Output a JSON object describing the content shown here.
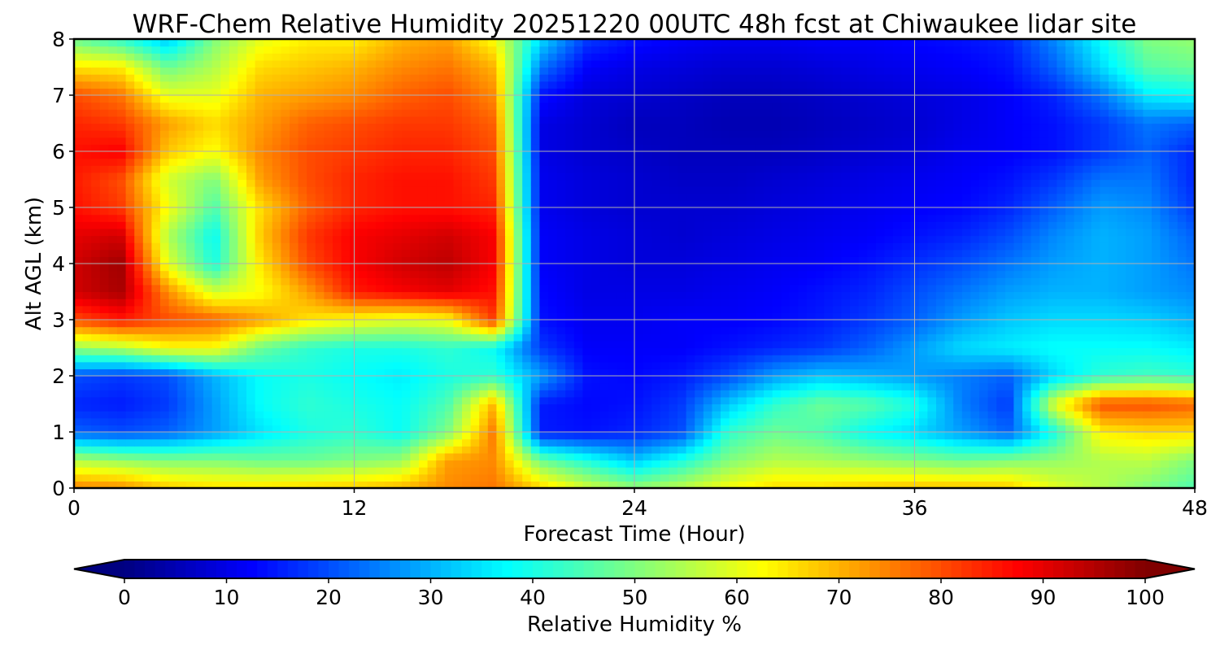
{
  "chart_data": {
    "type": "heatmap",
    "title": "WRF-Chem Relative Humidity 20251220 00UTC 48h fcst at Chiwaukee lidar site",
    "xlabel": "Forecast Time (Hour)",
    "ylabel": "Alt AGL (km)",
    "xlim": [
      0,
      48
    ],
    "ylim": [
      0,
      8
    ],
    "xticks": [
      0,
      12,
      24,
      36,
      48
    ],
    "yticks": [
      0,
      1,
      2,
      3,
      4,
      5,
      6,
      7,
      8
    ],
    "grid": true,
    "colormap": "jet",
    "colorbar": {
      "label": "Relative Humidity %",
      "min": 0,
      "max": 100,
      "ticks": [
        0,
        10,
        20,
        30,
        40,
        50,
        60,
        70,
        80,
        90,
        100
      ],
      "extend": "both",
      "orientation": "horizontal"
    },
    "x": [
      0,
      2,
      4,
      6,
      8,
      10,
      12,
      14,
      16,
      18,
      20,
      22,
      24,
      26,
      28,
      30,
      32,
      34,
      36,
      38,
      40,
      42,
      44,
      46,
      48
    ],
    "y": [
      0,
      0.5,
      1,
      1.5,
      2,
      2.5,
      3,
      3.5,
      4,
      4.5,
      5,
      5.5,
      6,
      6.5,
      7,
      7.5,
      8
    ],
    "z": [
      [
        75,
        74,
        68,
        66,
        66,
        67,
        68,
        70,
        74,
        76,
        67,
        58,
        52,
        56,
        62,
        66,
        66,
        68,
        69,
        69,
        68,
        60,
        55,
        50,
        45
      ],
      [
        55,
        52,
        50,
        50,
        48,
        48,
        50,
        52,
        72,
        74,
        48,
        40,
        32,
        40,
        50,
        55,
        54,
        52,
        50,
        48,
        50,
        52,
        55,
        56,
        50
      ],
      [
        22,
        20,
        22,
        28,
        35,
        40,
        42,
        38,
        50,
        76,
        15,
        14,
        16,
        20,
        42,
        48,
        45,
        38,
        34,
        28,
        22,
        40,
        64,
        66,
        66
      ],
      [
        16,
        15,
        18,
        28,
        38,
        42,
        40,
        38,
        45,
        70,
        15,
        13,
        14,
        18,
        32,
        42,
        48,
        46,
        40,
        25,
        18,
        60,
        80,
        80,
        78
      ],
      [
        20,
        18,
        20,
        30,
        38,
        40,
        38,
        36,
        40,
        42,
        28,
        14,
        13,
        15,
        20,
        28,
        32,
        30,
        28,
        25,
        22,
        34,
        42,
        44,
        42
      ],
      [
        52,
        55,
        62,
        62,
        48,
        42,
        40,
        40,
        42,
        38,
        18,
        12,
        12,
        12,
        14,
        16,
        18,
        22,
        28,
        34,
        36,
        38,
        38,
        38,
        36
      ],
      [
        80,
        85,
        80,
        78,
        72,
        65,
        62,
        60,
        62,
        82,
        14,
        11,
        11,
        12,
        12,
        13,
        15,
        18,
        22,
        28,
        32,
        34,
        34,
        33,
        30
      ],
      [
        92,
        96,
        74,
        58,
        62,
        72,
        85,
        88,
        90,
        86,
        13,
        10,
        10,
        10,
        11,
        12,
        14,
        16,
        20,
        24,
        28,
        30,
        30,
        28,
        26
      ],
      [
        92,
        97,
        60,
        40,
        65,
        80,
        88,
        92,
        94,
        88,
        12,
        10,
        9,
        9,
        10,
        11,
        12,
        14,
        17,
        20,
        24,
        28,
        30,
        28,
        24
      ],
      [
        90,
        92,
        55,
        38,
        68,
        82,
        88,
        90,
        92,
        88,
        12,
        10,
        9,
        8,
        9,
        10,
        11,
        12,
        14,
        16,
        20,
        26,
        30,
        28,
        22
      ],
      [
        86,
        82,
        62,
        45,
        66,
        78,
        84,
        86,
        86,
        84,
        11,
        9,
        8,
        8,
        8,
        9,
        10,
        11,
        12,
        13,
        16,
        22,
        28,
        26,
        18
      ],
      [
        85,
        80,
        58,
        50,
        72,
        80,
        84,
        86,
        86,
        82,
        11,
        9,
        8,
        7,
        7,
        8,
        9,
        10,
        11,
        12,
        14,
        18,
        24,
        24,
        16
      ],
      [
        86,
        88,
        68,
        62,
        74,
        80,
        82,
        84,
        84,
        80,
        10,
        8,
        7,
        6,
        6,
        6,
        7,
        8,
        9,
        11,
        12,
        14,
        18,
        22,
        16
      ],
      [
        84,
        82,
        72,
        66,
        72,
        78,
        80,
        82,
        82,
        78,
        10,
        8,
        6,
        6,
        5,
        5,
        6,
        7,
        8,
        10,
        12,
        14,
        18,
        24,
        22
      ],
      [
        80,
        76,
        60,
        60,
        70,
        72,
        74,
        78,
        80,
        74,
        14,
        9,
        8,
        7,
        6,
        6,
        7,
        8,
        9,
        10,
        12,
        16,
        24,
        36,
        38
      ],
      [
        65,
        64,
        48,
        55,
        66,
        68,
        70,
        74,
        76,
        70,
        24,
        12,
        10,
        9,
        8,
        8,
        9,
        10,
        11,
        12,
        14,
        22,
        34,
        46,
        48
      ],
      [
        48,
        42,
        32,
        50,
        60,
        64,
        64,
        70,
        72,
        62,
        34,
        18,
        14,
        12,
        11,
        11,
        12,
        12,
        13,
        14,
        16,
        26,
        38,
        50,
        52
      ]
    ]
  }
}
